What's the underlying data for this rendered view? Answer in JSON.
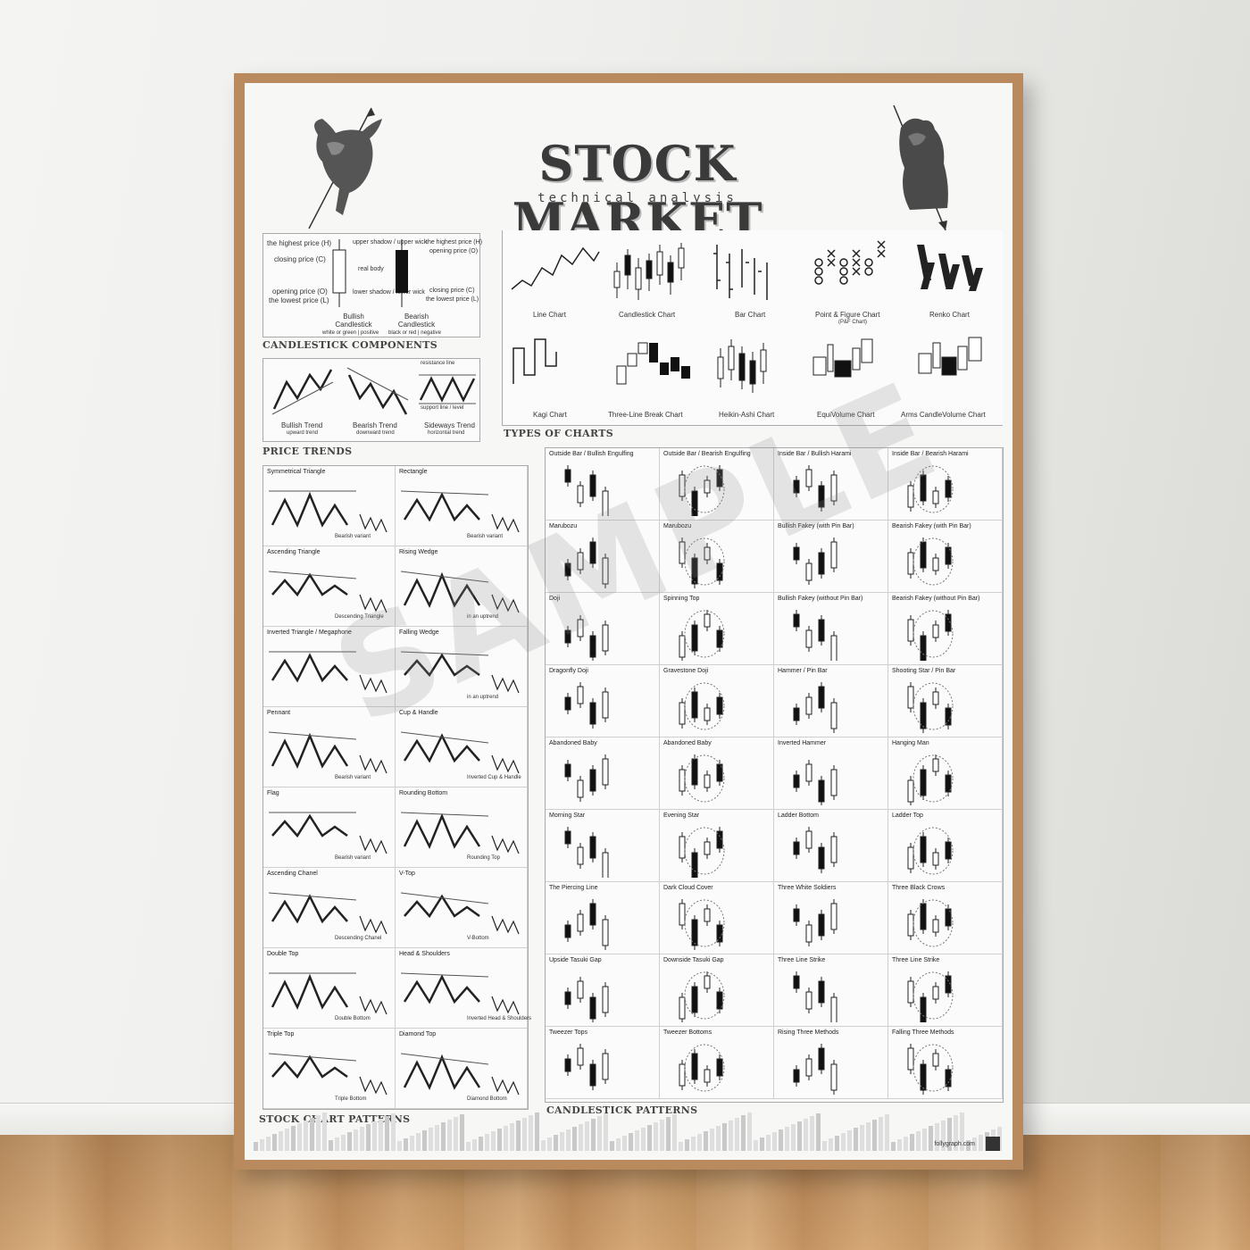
{
  "poster": {
    "title": "STOCK MARKET",
    "subtitle": "technical analysis",
    "brand": "follygraph.com"
  },
  "components": {
    "section_title": "CANDLESTICK COMPONENTS",
    "labels_left": [
      "the highest price (H)",
      "closing price (C)",
      "opening price (O)",
      "the lowest price (L)"
    ],
    "labels_mid": [
      "upper shadow / upper wick",
      "real body",
      "lower shadow / lower wick"
    ],
    "labels_right": [
      "the highest price (H)",
      "opening price (O)",
      "closing price (C)",
      "the lowest price (L)"
    ],
    "bullish": "Bullish Candlestick",
    "bullish_note": "white or green | positive",
    "bearish": "Bearish Candlestick",
    "bearish_note": "black or red | negative"
  },
  "trends": {
    "section_title": "PRICE TRENDS",
    "items": [
      {
        "name": "Bullish Trend",
        "note": "upward trend",
        "line": "resistance line / level"
      },
      {
        "name": "Bearish Trend",
        "note": "downward trend",
        "line": "resistance line / level"
      },
      {
        "name": "Sideways Trend",
        "note": "horizontal trend",
        "line": "resistance line"
      }
    ],
    "support": "support line / level"
  },
  "chart_types": {
    "section_title": "TYPES OF CHARTS",
    "row1": [
      "Line Chart",
      "Candlestick Chart",
      "Bar Chart",
      "Point & Figure Chart",
      "Renko Chart"
    ],
    "pf_note": "(P&F Chart)",
    "row2": [
      "Kagi Chart",
      "Three-Line Break Chart",
      "Heikin-Ashi Chart",
      "EquiVolume Chart",
      "Arms CandleVolume Chart"
    ]
  },
  "stock_patterns": {
    "section_title": "STOCK CHART PATTERNS",
    "items": [
      {
        "name": "Symmetrical Triangle",
        "variant": "Bearish variant"
      },
      {
        "name": "Rectangle",
        "variant": "Bearish variant"
      },
      {
        "name": "Ascending Triangle",
        "variant": "Descending Triangle"
      },
      {
        "name": "Rising Wedge",
        "variant": "in an uptrend"
      },
      {
        "name": "Inverted Triangle / Megaphone",
        "variant": ""
      },
      {
        "name": "Falling Wedge",
        "variant": "in an uptrend"
      },
      {
        "name": "Pennant",
        "variant": "Bearish variant"
      },
      {
        "name": "Cup & Handle",
        "variant": "Inverted Cup & Handle"
      },
      {
        "name": "Flag",
        "variant": "Bearish variant"
      },
      {
        "name": "Rounding Bottom",
        "variant": "Rounding Top"
      },
      {
        "name": "Ascending Chanel",
        "variant": "Descending Chanel"
      },
      {
        "name": "V-Top",
        "variant": "V-Bottom"
      },
      {
        "name": "Double Top",
        "variant": "Double Bottom"
      },
      {
        "name": "Head & Shoulders",
        "variant": "Inverted Head & Shoulders"
      },
      {
        "name": "Triple Top",
        "variant": "Triple Bottom"
      },
      {
        "name": "Diamond Top",
        "variant": "Diamond Bottom"
      }
    ]
  },
  "candle_patterns": {
    "section_title": "CANDLESTICK PATTERNS",
    "items": [
      "Outside Bar / Bullish Engulfing",
      "Outside Bar / Bearish Engulfing",
      "Inside Bar / Bullish Harami",
      "Inside Bar / Bearish Harami",
      "Marubozu",
      "Marubozu",
      "Bullish Fakey (with Pin Bar)",
      "Bearish Fakey (with Pin Bar)",
      "Doji",
      "Spinning Top",
      "Bullish Fakey (without Pin Bar)",
      "Bearish Fakey (without Pin Bar)",
      "Dragonfly Doji",
      "Gravestone Doji",
      "Hammer / Pin Bar",
      "Shooting Star / Pin Bar",
      "Abandoned Baby",
      "Abandoned Baby",
      "Inverted Hammer",
      "Hanging Man",
      "Morning Star",
      "Evening Star",
      "Ladder Bottom",
      "Ladder Top",
      "The Piercing Line",
      "Dark Cloud Cover",
      "Three White Soldiers",
      "Three Black Crows",
      "Upside Tasuki Gap",
      "Downside Tasuki Gap",
      "Three Line Strike",
      "Three Line Strike",
      "Tweezer Tops",
      "Tweezer Bottoms",
      "Rising Three Methods",
      "Falling Three Methods"
    ]
  },
  "icons": {
    "bull": "bull-icon",
    "bear": "bear-icon",
    "logo": "follygraph-logo-icon"
  }
}
